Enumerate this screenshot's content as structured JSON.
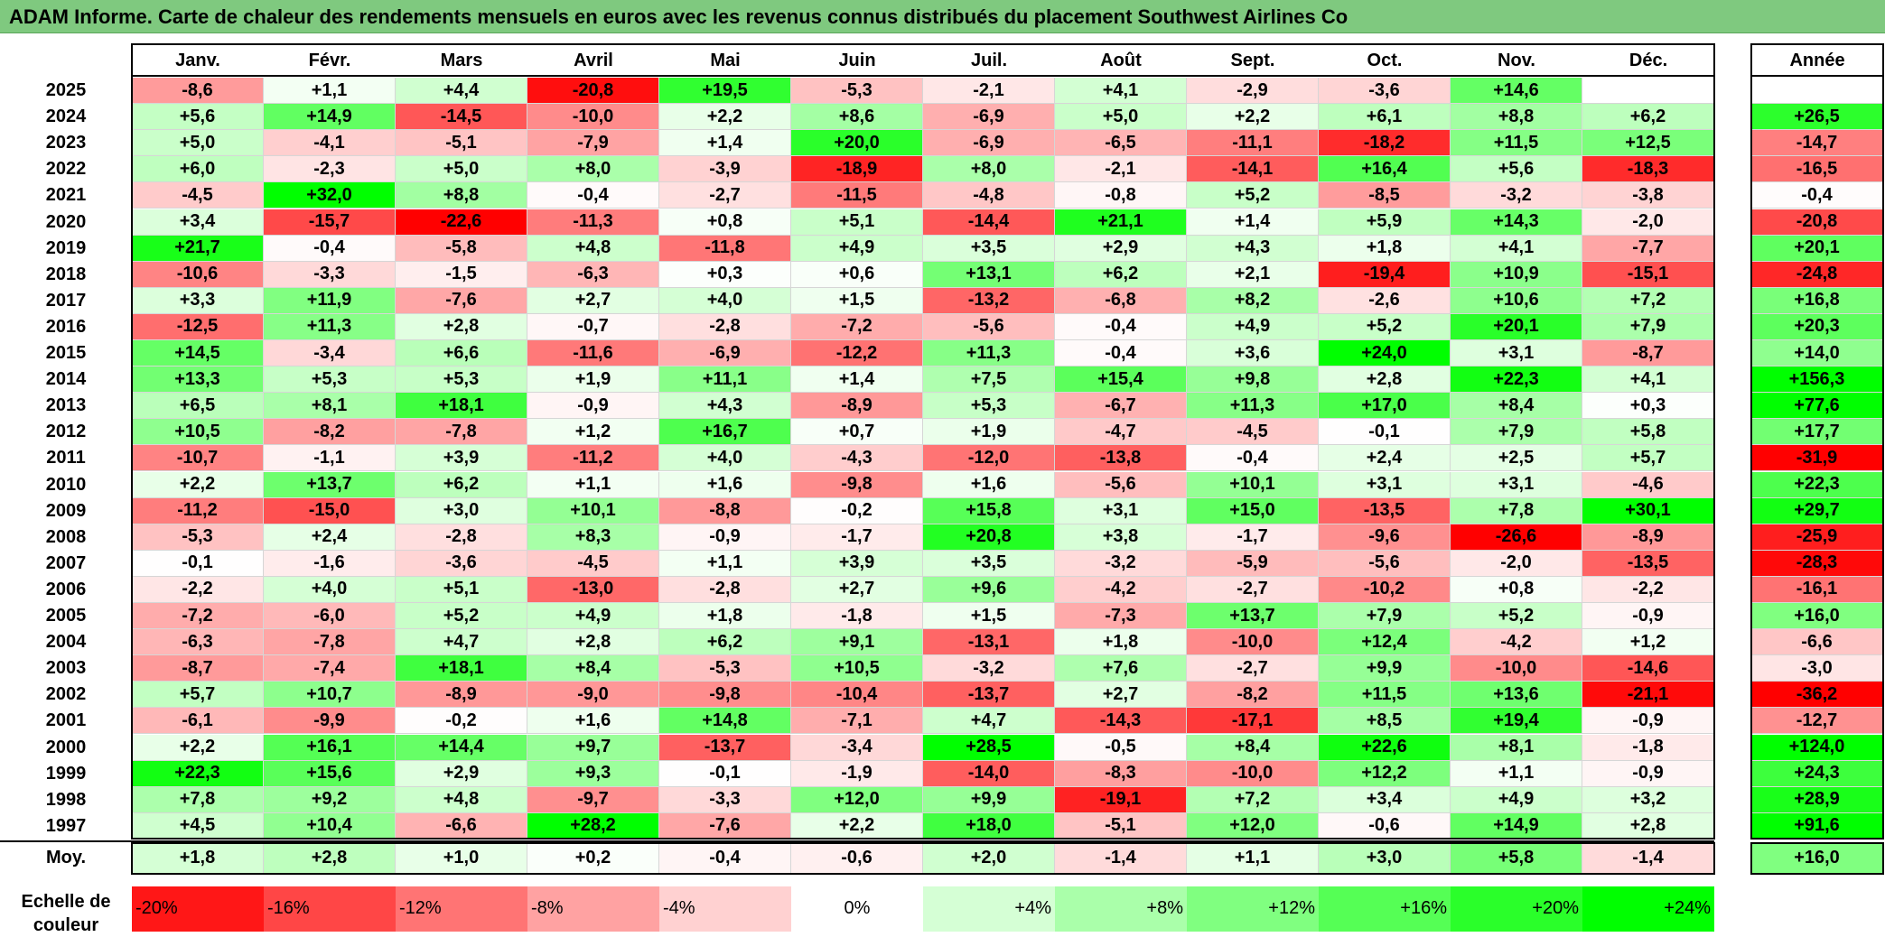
{
  "title": "ADAM Informe. Carte de chaleur des rendements mensuels en euros avec les revenus connus distribués du placement Southwest Airlines Co",
  "chart_data": {
    "type": "heatmap",
    "months": [
      "Janv.",
      "Févr.",
      "Mars",
      "Avril",
      "Mai",
      "Juin",
      "Juil.",
      "Août",
      "Sept.",
      "Oct.",
      "Nov.",
      "Déc."
    ],
    "annual_label": "Année",
    "rows": [
      {
        "year": "2025",
        "values": [
          "-8,6",
          "+1,1",
          "+4,4",
          "-20,8",
          "+19,5",
          "-5,3",
          "-2,1",
          "+4,1",
          "-2,9",
          "-3,6",
          "+14,6",
          ""
        ],
        "annual": ""
      },
      {
        "year": "2024",
        "values": [
          "+5,6",
          "+14,9",
          "-14,5",
          "-10,0",
          "+2,2",
          "+8,6",
          "-6,9",
          "+5,0",
          "+2,2",
          "+6,1",
          "+8,8",
          "+6,2"
        ],
        "annual": "+26,5"
      },
      {
        "year": "2023",
        "values": [
          "+5,0",
          "-4,1",
          "-5,1",
          "-7,9",
          "+1,4",
          "+20,0",
          "-6,9",
          "-6,5",
          "-11,1",
          "-18,2",
          "+11,5",
          "+12,5"
        ],
        "annual": "-14,7"
      },
      {
        "year": "2022",
        "values": [
          "+6,0",
          "-2,3",
          "+5,0",
          "+8,0",
          "-3,9",
          "-18,9",
          "+8,0",
          "-2,1",
          "-14,1",
          "+16,4",
          "+5,6",
          "-18,3"
        ],
        "annual": "-16,5"
      },
      {
        "year": "2021",
        "values": [
          "-4,5",
          "+32,0",
          "+8,8",
          "-0,4",
          "-2,7",
          "-11,5",
          "-4,8",
          "-0,8",
          "+5,2",
          "-8,5",
          "-3,2",
          "-3,8"
        ],
        "annual": "-0,4"
      },
      {
        "year": "2020",
        "values": [
          "+3,4",
          "-15,7",
          "-22,6",
          "-11,3",
          "+0,8",
          "+5,1",
          "-14,4",
          "+21,1",
          "+1,4",
          "+5,9",
          "+14,3",
          "-2,0"
        ],
        "annual": "-20,8"
      },
      {
        "year": "2019",
        "values": [
          "+21,7",
          "-0,4",
          "-5,8",
          "+4,8",
          "-11,8",
          "+4,9",
          "+3,5",
          "+2,9",
          "+4,3",
          "+1,8",
          "+4,1",
          "-7,7"
        ],
        "annual": "+20,1"
      },
      {
        "year": "2018",
        "values": [
          "-10,6",
          "-3,3",
          "-1,5",
          "-6,3",
          "+0,3",
          "+0,6",
          "+13,1",
          "+6,2",
          "+2,1",
          "-19,4",
          "+10,9",
          "-15,1"
        ],
        "annual": "-24,8"
      },
      {
        "year": "2017",
        "values": [
          "+3,3",
          "+11,9",
          "-7,6",
          "+2,7",
          "+4,0",
          "+1,5",
          "-13,2",
          "-6,8",
          "+8,2",
          "-2,6",
          "+10,6",
          "+7,2"
        ],
        "annual": "+16,8"
      },
      {
        "year": "2016",
        "values": [
          "-12,5",
          "+11,3",
          "+2,8",
          "-0,7",
          "-2,8",
          "-7,2",
          "-5,6",
          "-0,4",
          "+4,9",
          "+5,2",
          "+20,1",
          "+7,9"
        ],
        "annual": "+20,3"
      },
      {
        "year": "2015",
        "values": [
          "+14,5",
          "-3,4",
          "+6,6",
          "-11,6",
          "-6,9",
          "-12,2",
          "+11,3",
          "-0,4",
          "+3,6",
          "+24,0",
          "+3,1",
          "-8,7"
        ],
        "annual": "+14,0"
      },
      {
        "year": "2014",
        "values": [
          "+13,3",
          "+5,3",
          "+5,3",
          "+1,9",
          "+11,1",
          "+1,4",
          "+7,5",
          "+15,4",
          "+9,8",
          "+2,8",
          "+22,3",
          "+4,1"
        ],
        "annual": "+156,3"
      },
      {
        "year": "2013",
        "values": [
          "+6,5",
          "+8,1",
          "+18,1",
          "-0,9",
          "+4,3",
          "-8,9",
          "+5,3",
          "-6,7",
          "+11,3",
          "+17,0",
          "+8,4",
          "+0,3"
        ],
        "annual": "+77,6"
      },
      {
        "year": "2012",
        "values": [
          "+10,5",
          "-8,2",
          "-7,8",
          "+1,2",
          "+16,7",
          "+0,7",
          "+1,9",
          "-4,7",
          "-4,5",
          "-0,1",
          "+7,9",
          "+5,8"
        ],
        "annual": "+17,7"
      },
      {
        "year": "2011",
        "values": [
          "-10,7",
          "-1,1",
          "+3,9",
          "-11,2",
          "+4,0",
          "-4,3",
          "-12,0",
          "-13,8",
          "-0,4",
          "+2,4",
          "+2,5",
          "+5,7"
        ],
        "annual": "-31,9"
      },
      {
        "year": "2010",
        "values": [
          "+2,2",
          "+13,7",
          "+6,2",
          "+1,1",
          "+1,6",
          "-9,8",
          "+1,6",
          "-5,6",
          "+10,1",
          "+3,1",
          "+3,1",
          "-4,6"
        ],
        "annual": "+22,3"
      },
      {
        "year": "2009",
        "values": [
          "-11,2",
          "-15,0",
          "+3,0",
          "+10,1",
          "-8,8",
          "-0,2",
          "+15,8",
          "+3,1",
          "+15,0",
          "-13,5",
          "+7,8",
          "+30,1"
        ],
        "annual": "+29,7"
      },
      {
        "year": "2008",
        "values": [
          "-5,3",
          "+2,4",
          "-2,8",
          "+8,3",
          "-0,9",
          "-1,7",
          "+20,8",
          "+3,8",
          "-1,7",
          "-9,6",
          "-26,6",
          "-8,9"
        ],
        "annual": "-25,9"
      },
      {
        "year": "2007",
        "values": [
          "-0,1",
          "-1,6",
          "-3,6",
          "-4,5",
          "+1,1",
          "+3,9",
          "+3,5",
          "-3,2",
          "-5,9",
          "-5,6",
          "-2,0",
          "-13,5"
        ],
        "annual": "-28,3"
      },
      {
        "year": "2006",
        "values": [
          "-2,2",
          "+4,0",
          "+5,1",
          "-13,0",
          "-2,8",
          "+2,7",
          "+9,6",
          "-4,2",
          "-2,7",
          "-10,2",
          "+0,8",
          "-2,2"
        ],
        "annual": "-16,1"
      },
      {
        "year": "2005",
        "values": [
          "-7,2",
          "-6,0",
          "+5,2",
          "+4,9",
          "+1,8",
          "-1,8",
          "+1,5",
          "-7,3",
          "+13,7",
          "+7,9",
          "+5,2",
          "-0,9"
        ],
        "annual": "+16,0"
      },
      {
        "year": "2004",
        "values": [
          "-6,3",
          "-7,8",
          "+4,7",
          "+2,8",
          "+6,2",
          "+9,1",
          "-13,1",
          "+1,8",
          "-10,0",
          "+12,4",
          "-4,2",
          "+1,2"
        ],
        "annual": "-6,6"
      },
      {
        "year": "2003",
        "values": [
          "-8,7",
          "-7,4",
          "+18,1",
          "+8,4",
          "-5,3",
          "+10,5",
          "-3,2",
          "+7,6",
          "-2,7",
          "+9,9",
          "-10,0",
          "-14,6"
        ],
        "annual": "-3,0"
      },
      {
        "year": "2002",
        "values": [
          "+5,7",
          "+10,7",
          "-8,9",
          "-9,0",
          "-9,8",
          "-10,4",
          "-13,7",
          "+2,7",
          "-8,2",
          "+11,5",
          "+13,6",
          "-21,1"
        ],
        "annual": "-36,2"
      },
      {
        "year": "2001",
        "values": [
          "-6,1",
          "-9,9",
          "-0,2",
          "+1,6",
          "+14,8",
          "-7,1",
          "+4,7",
          "-14,3",
          "-17,1",
          "+8,5",
          "+19,4",
          "-0,9"
        ],
        "annual": "-12,7"
      },
      {
        "year": "2000",
        "values": [
          "+2,2",
          "+16,1",
          "+14,4",
          "+9,7",
          "-13,7",
          "-3,4",
          "+28,5",
          "-0,5",
          "+8,4",
          "+22,6",
          "+8,1",
          "-1,8"
        ],
        "annual": "+124,0"
      },
      {
        "year": "1999",
        "values": [
          "+22,3",
          "+15,6",
          "+2,9",
          "+9,3",
          "-0,1",
          "-1,9",
          "-14,0",
          "-8,3",
          "-10,0",
          "+12,2",
          "+1,1",
          "-0,9"
        ],
        "annual": "+24,3"
      },
      {
        "year": "1998",
        "values": [
          "+7,8",
          "+9,2",
          "+4,8",
          "-9,7",
          "-3,3",
          "+12,0",
          "+9,9",
          "-19,1",
          "+7,2",
          "+3,4",
          "+4,9",
          "+3,2"
        ],
        "annual": "+28,9"
      },
      {
        "year": "1997",
        "values": [
          "+4,5",
          "+10,4",
          "-6,6",
          "+28,2",
          "-7,6",
          "+2,2",
          "+18,0",
          "-5,1",
          "+12,0",
          "-0,6",
          "+14,9",
          "+2,8"
        ],
        "annual": "+91,6"
      }
    ],
    "average": {
      "label": "Moy.",
      "values": [
        "+1,8",
        "+2,8",
        "+1,0",
        "+0,2",
        "-0,4",
        "-0,6",
        "+2,0",
        "-1,4",
        "+1,1",
        "+3,0",
        "+5,8",
        "-1,4"
      ],
      "annual": "+16,0"
    },
    "legend": {
      "label": "Echelle de couleur",
      "steps": [
        {
          "text": "-20%",
          "value": -20
        },
        {
          "text": "-16%",
          "value": -16
        },
        {
          "text": "-12%",
          "value": -12
        },
        {
          "text": "-8%",
          "value": -8
        },
        {
          "text": "-4%",
          "value": -4
        },
        {
          "text": "0%",
          "value": 0
        },
        {
          "text": "+4%",
          "value": 4
        },
        {
          "text": "+8%",
          "value": 8
        },
        {
          "text": "+12%",
          "value": 12
        },
        {
          "text": "+16%",
          "value": 16
        },
        {
          "text": "+20%",
          "value": 20
        },
        {
          "text": "+24%",
          "value": 24
        }
      ]
    },
    "colors": {
      "negative_max": "#ff0000",
      "neutral": "#ffffff",
      "positive_max": "#00ff00",
      "title_bg": "#7fc97f"
    }
  }
}
